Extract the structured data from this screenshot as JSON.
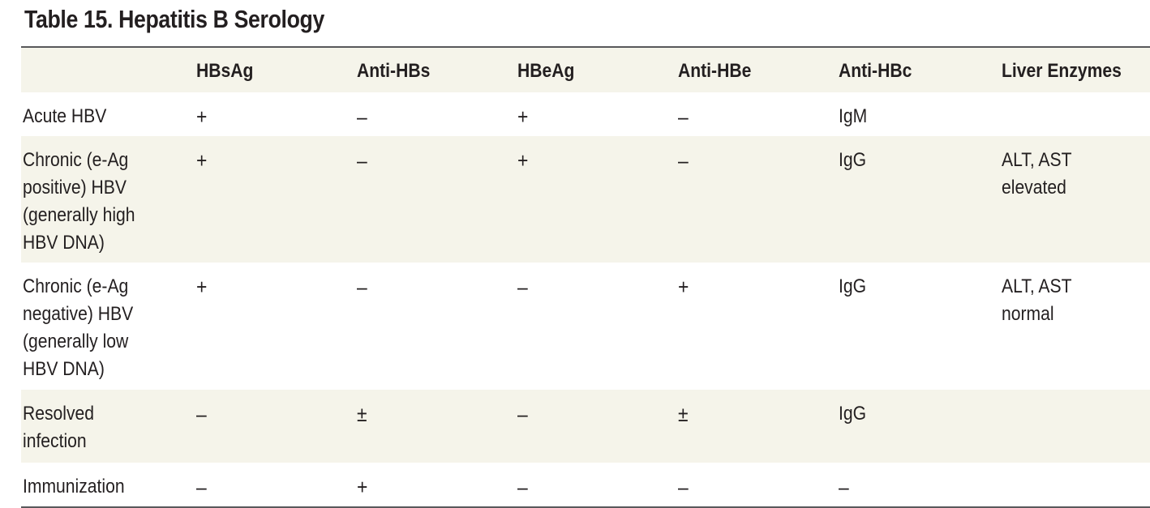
{
  "title": "Table 15. Hepatitis B Serology",
  "columns": [
    "",
    "HBsAg",
    "Anti-HBs",
    "HBeAg",
    "Anti-HBe",
    "Anti-HBc",
    "Liver Enzymes"
  ],
  "rows": [
    {
      "label": "Acute HBV",
      "cells": [
        "+",
        "–",
        "+",
        "–",
        "IgM",
        ""
      ]
    },
    {
      "label": "Chronic (e-Ag\npositive) HBV\n(generally high\nHBV DNA)",
      "cells": [
        "+",
        "–",
        "+",
        "–",
        "IgG",
        "ALT, AST\nelevated"
      ]
    },
    {
      "label": "Chronic (e-Ag\nnegative) HBV\n(generally low\nHBV DNA)",
      "cells": [
        "+",
        "–",
        "–",
        "+",
        "IgG",
        "ALT, AST\nnormal"
      ]
    },
    {
      "label": "Resolved\ninfection",
      "cells": [
        "–",
        "±",
        "–",
        "±",
        "IgG",
        ""
      ]
    },
    {
      "label": "Immunization",
      "cells": [
        "–",
        "+",
        "–",
        "–",
        "–",
        ""
      ]
    }
  ]
}
